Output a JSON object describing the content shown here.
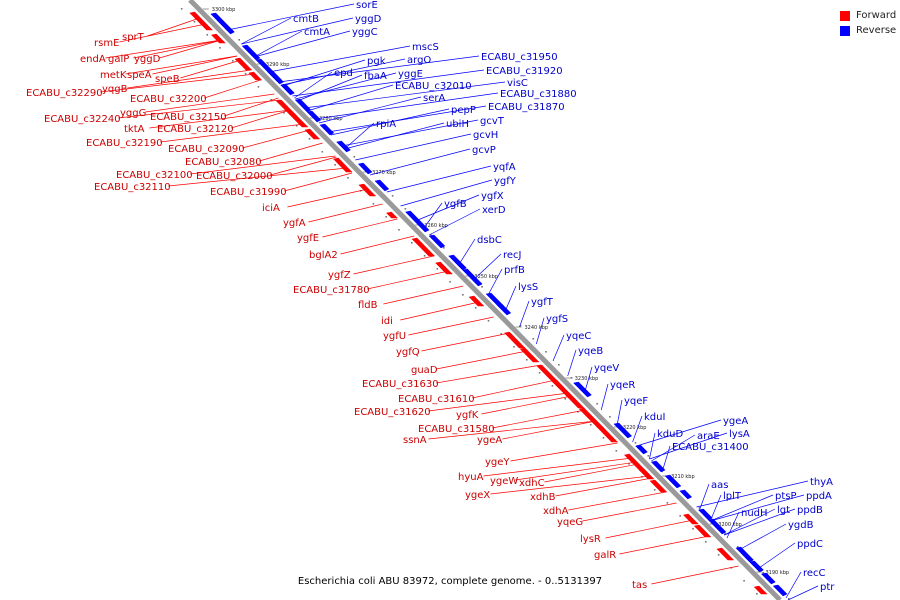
{
  "caption": "Escherichia coli ABU 83972, complete genome. - 0..5131397",
  "legend": {
    "forward": {
      "label": "Forward",
      "color": "#ff0000"
    },
    "reverse": {
      "label": "Reverse",
      "color": "#0000ff"
    }
  },
  "scale_labels": [
    "3300 kbp",
    "3290 kbp",
    "3280 kbp",
    "3270 kbp",
    "3260 kbp",
    "3250 kbp",
    "3240 kbp",
    "3230 kbp",
    "3220 kbp",
    "3210 kbp",
    "3200 kbp",
    "3190 kbp"
  ],
  "forward_genes": [
    "sprT",
    "rsmE",
    "endA",
    "galP",
    "yggD",
    "metK",
    "speA",
    "speB",
    "yqgB",
    "ECABU_c32290",
    "ECABU_c32200",
    "yggG",
    "ECABU_c32240",
    "ECABU_c32150",
    "tktA",
    "ECABU_c32120",
    "ECABU_c32190",
    "ECABU_c32090",
    "ECABU_c32080",
    "ECABU_c32100",
    "ECABU_c32000",
    "ECABU_c32110",
    "ECABU_c31990",
    "iciA",
    "ygfA",
    "ygfE",
    "bglA2",
    "ygfZ",
    "ECABU_c31780",
    "fldB",
    "idi",
    "ygfU",
    "ygfQ",
    "guaD",
    "ECABU_c31630",
    "ECABU_c31610",
    "ECABU_c31620",
    "ygfK",
    "ECABU_c31580",
    "ssnA",
    "ygeA",
    "ygeY",
    "hyuA",
    "ygeW",
    "xdhC",
    "ygeX",
    "xdhB",
    "xdhA",
    "yqeG",
    "lysR",
    "galR",
    "tas"
  ],
  "reverse_genes": [
    "sorE",
    "cmtB",
    "yggD",
    "cmtA",
    "yggC",
    "mscS",
    "pgk",
    "argO",
    "epd",
    "fbaA",
    "yggE",
    "ECABU_c31950",
    "ECABU_c31920",
    "ECABU_c32010",
    "serA",
    "visC",
    "ECABU_c31880",
    "pepP",
    "ECABU_c31870",
    "ubiH",
    "gcvT",
    "rpiA",
    "gcvH",
    "gcvP",
    "yqfA",
    "ygfY",
    "ygfB",
    "ygfX",
    "xerD",
    "dsbC",
    "recJ",
    "prfB",
    "lysS",
    "ygfT",
    "ygfS",
    "yqeC",
    "yqeB",
    "yqeV",
    "yqeR",
    "yqeF",
    "kduI",
    "ygeA",
    "kduD",
    "araE",
    "lysA",
    "ECABU_c31400",
    "aas",
    "lplT",
    "thyA",
    "ptsP",
    "ppdA",
    "nudH",
    "lgt",
    "ppdB",
    "ygdB",
    "ppdC",
    "recC",
    "ptr"
  ]
}
